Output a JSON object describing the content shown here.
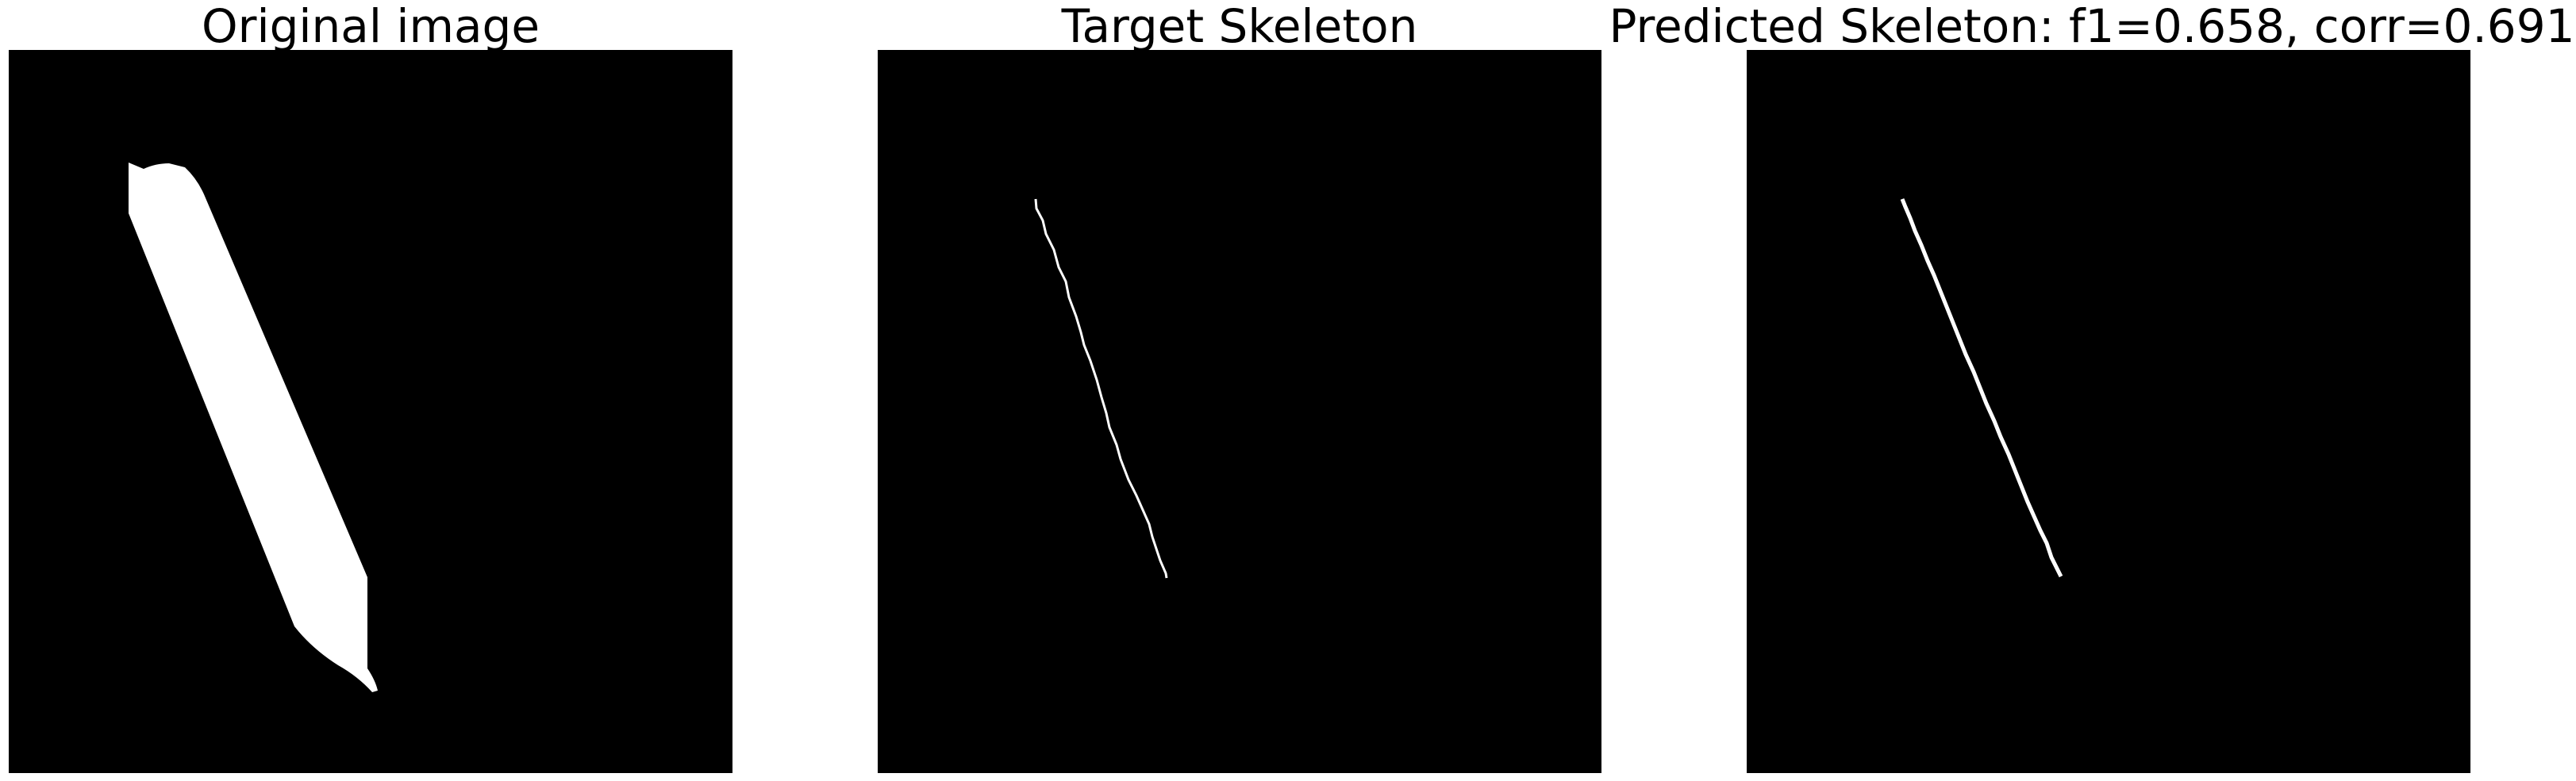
{
  "panels": [
    {
      "title": "Original image"
    },
    {
      "title": "Target Skeleton"
    },
    {
      "title": "Predicted Skeleton: f1=0.658, corr=0.691"
    }
  ],
  "colors": {
    "background": "#000000",
    "foreground": "#ffffff",
    "page": "#ffffff"
  }
}
